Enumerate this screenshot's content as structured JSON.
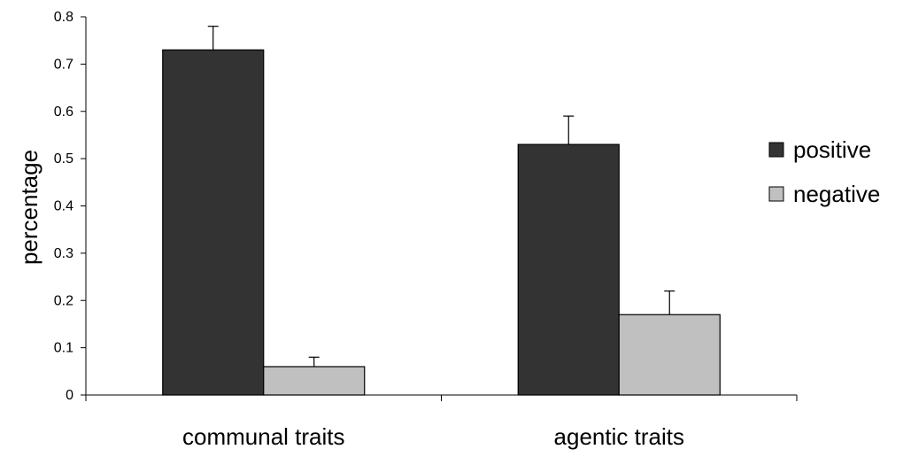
{
  "chart_data": {
    "type": "bar",
    "title": "",
    "xlabel": "",
    "ylabel": "percentage",
    "ylim": [
      0,
      0.8
    ],
    "yticks": [
      "0",
      "0.1",
      "0.2",
      "0.3",
      "0.4",
      "0.5",
      "0.6",
      "0.7",
      "0.8"
    ],
    "categories": [
      "communal traits",
      "agentic traits"
    ],
    "series": [
      {
        "name": "positive",
        "color": "#333333",
        "values": [
          0.73,
          0.53
        ],
        "errors": [
          0.05,
          0.06
        ]
      },
      {
        "name": "negative",
        "color": "#c0c0c0",
        "values": [
          0.06,
          0.17
        ],
        "errors": [
          0.02,
          0.05
        ]
      }
    ],
    "grid": false,
    "legend": "right"
  }
}
